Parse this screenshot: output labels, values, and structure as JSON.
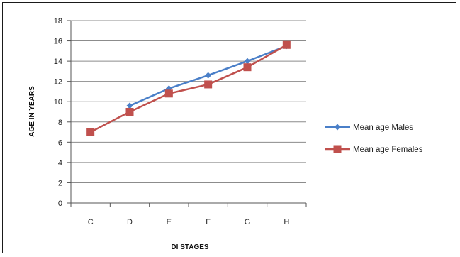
{
  "chart_data": {
    "type": "line",
    "title": "",
    "xlabel": "DI STAGES",
    "ylabel": "AGE IN YEARS",
    "categories": [
      "C",
      "D",
      "E",
      "F",
      "G",
      "H"
    ],
    "ylim": [
      0,
      18
    ],
    "yticks": [
      0,
      2,
      4,
      6,
      8,
      10,
      12,
      14,
      16,
      18
    ],
    "grid": true,
    "legend_position": "right",
    "series": [
      {
        "name": "Mean age Males",
        "values": [
          null,
          9.6,
          11.3,
          12.6,
          14.0,
          15.5
        ],
        "color": "#4a7fc8",
        "marker": "diamond"
      },
      {
        "name": "Mean age Females",
        "values": [
          7.0,
          9.0,
          10.8,
          11.7,
          13.4,
          15.6
        ],
        "color": "#c0504d",
        "marker": "square"
      }
    ]
  }
}
